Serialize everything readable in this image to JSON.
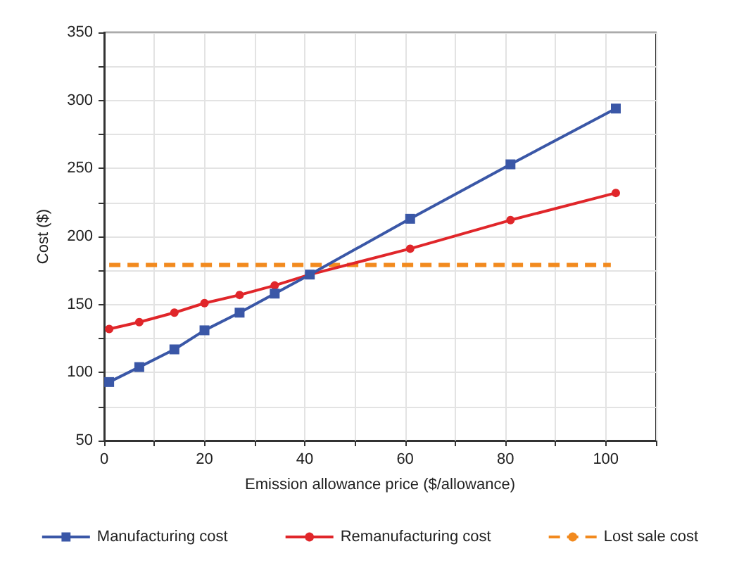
{
  "chart_data": {
    "type": "line",
    "xlabel": "Emission allowance price ($/allowance)",
    "ylabel": "Cost ($)",
    "xlim": [
      0,
      110
    ],
    "ylim": [
      50,
      350
    ],
    "xticks": [
      0,
      {
        "value": 10,
        "label": null
      },
      20,
      {
        "value": 30,
        "label": null
      },
      40,
      {
        "value": 50,
        "label": null
      },
      60,
      {
        "value": 70,
        "label": null
      },
      80,
      {
        "value": 90,
        "label": null
      },
      100,
      {
        "value": 110,
        "label": null
      }
    ],
    "yticks": [
      50,
      {
        "value": 75,
        "label": null
      },
      100,
      {
        "value": 125,
        "label": null
      },
      150,
      {
        "value": 175,
        "label": null
      },
      200,
      {
        "value": 225,
        "label": null
      },
      250,
      {
        "value": 275,
        "label": null
      },
      300,
      {
        "value": 325,
        "label": null
      },
      350
    ],
    "grid": true,
    "legend": "bottom",
    "x": [
      1,
      7,
      14,
      20,
      27,
      34,
      41,
      61,
      81,
      102
    ],
    "series": [
      {
        "name": "Manufacturing cost",
        "color": "#3a57a7",
        "marker": "square",
        "line_style": "solid",
        "values": [
          93,
          104,
          117,
          131,
          144,
          158,
          172,
          213,
          253,
          294
        ]
      },
      {
        "name": "Remanufacturing cost",
        "color": "#e0262a",
        "marker": "circle",
        "line_style": "solid",
        "values": [
          132,
          137,
          144,
          151,
          157,
          164,
          172,
          191,
          212,
          232
        ]
      },
      {
        "name": "Lost sale cost",
        "color": "#f28a1e",
        "marker": "none",
        "line_style": "dashed",
        "x": [
          1,
          101
        ],
        "values": [
          179,
          179
        ]
      }
    ]
  }
}
